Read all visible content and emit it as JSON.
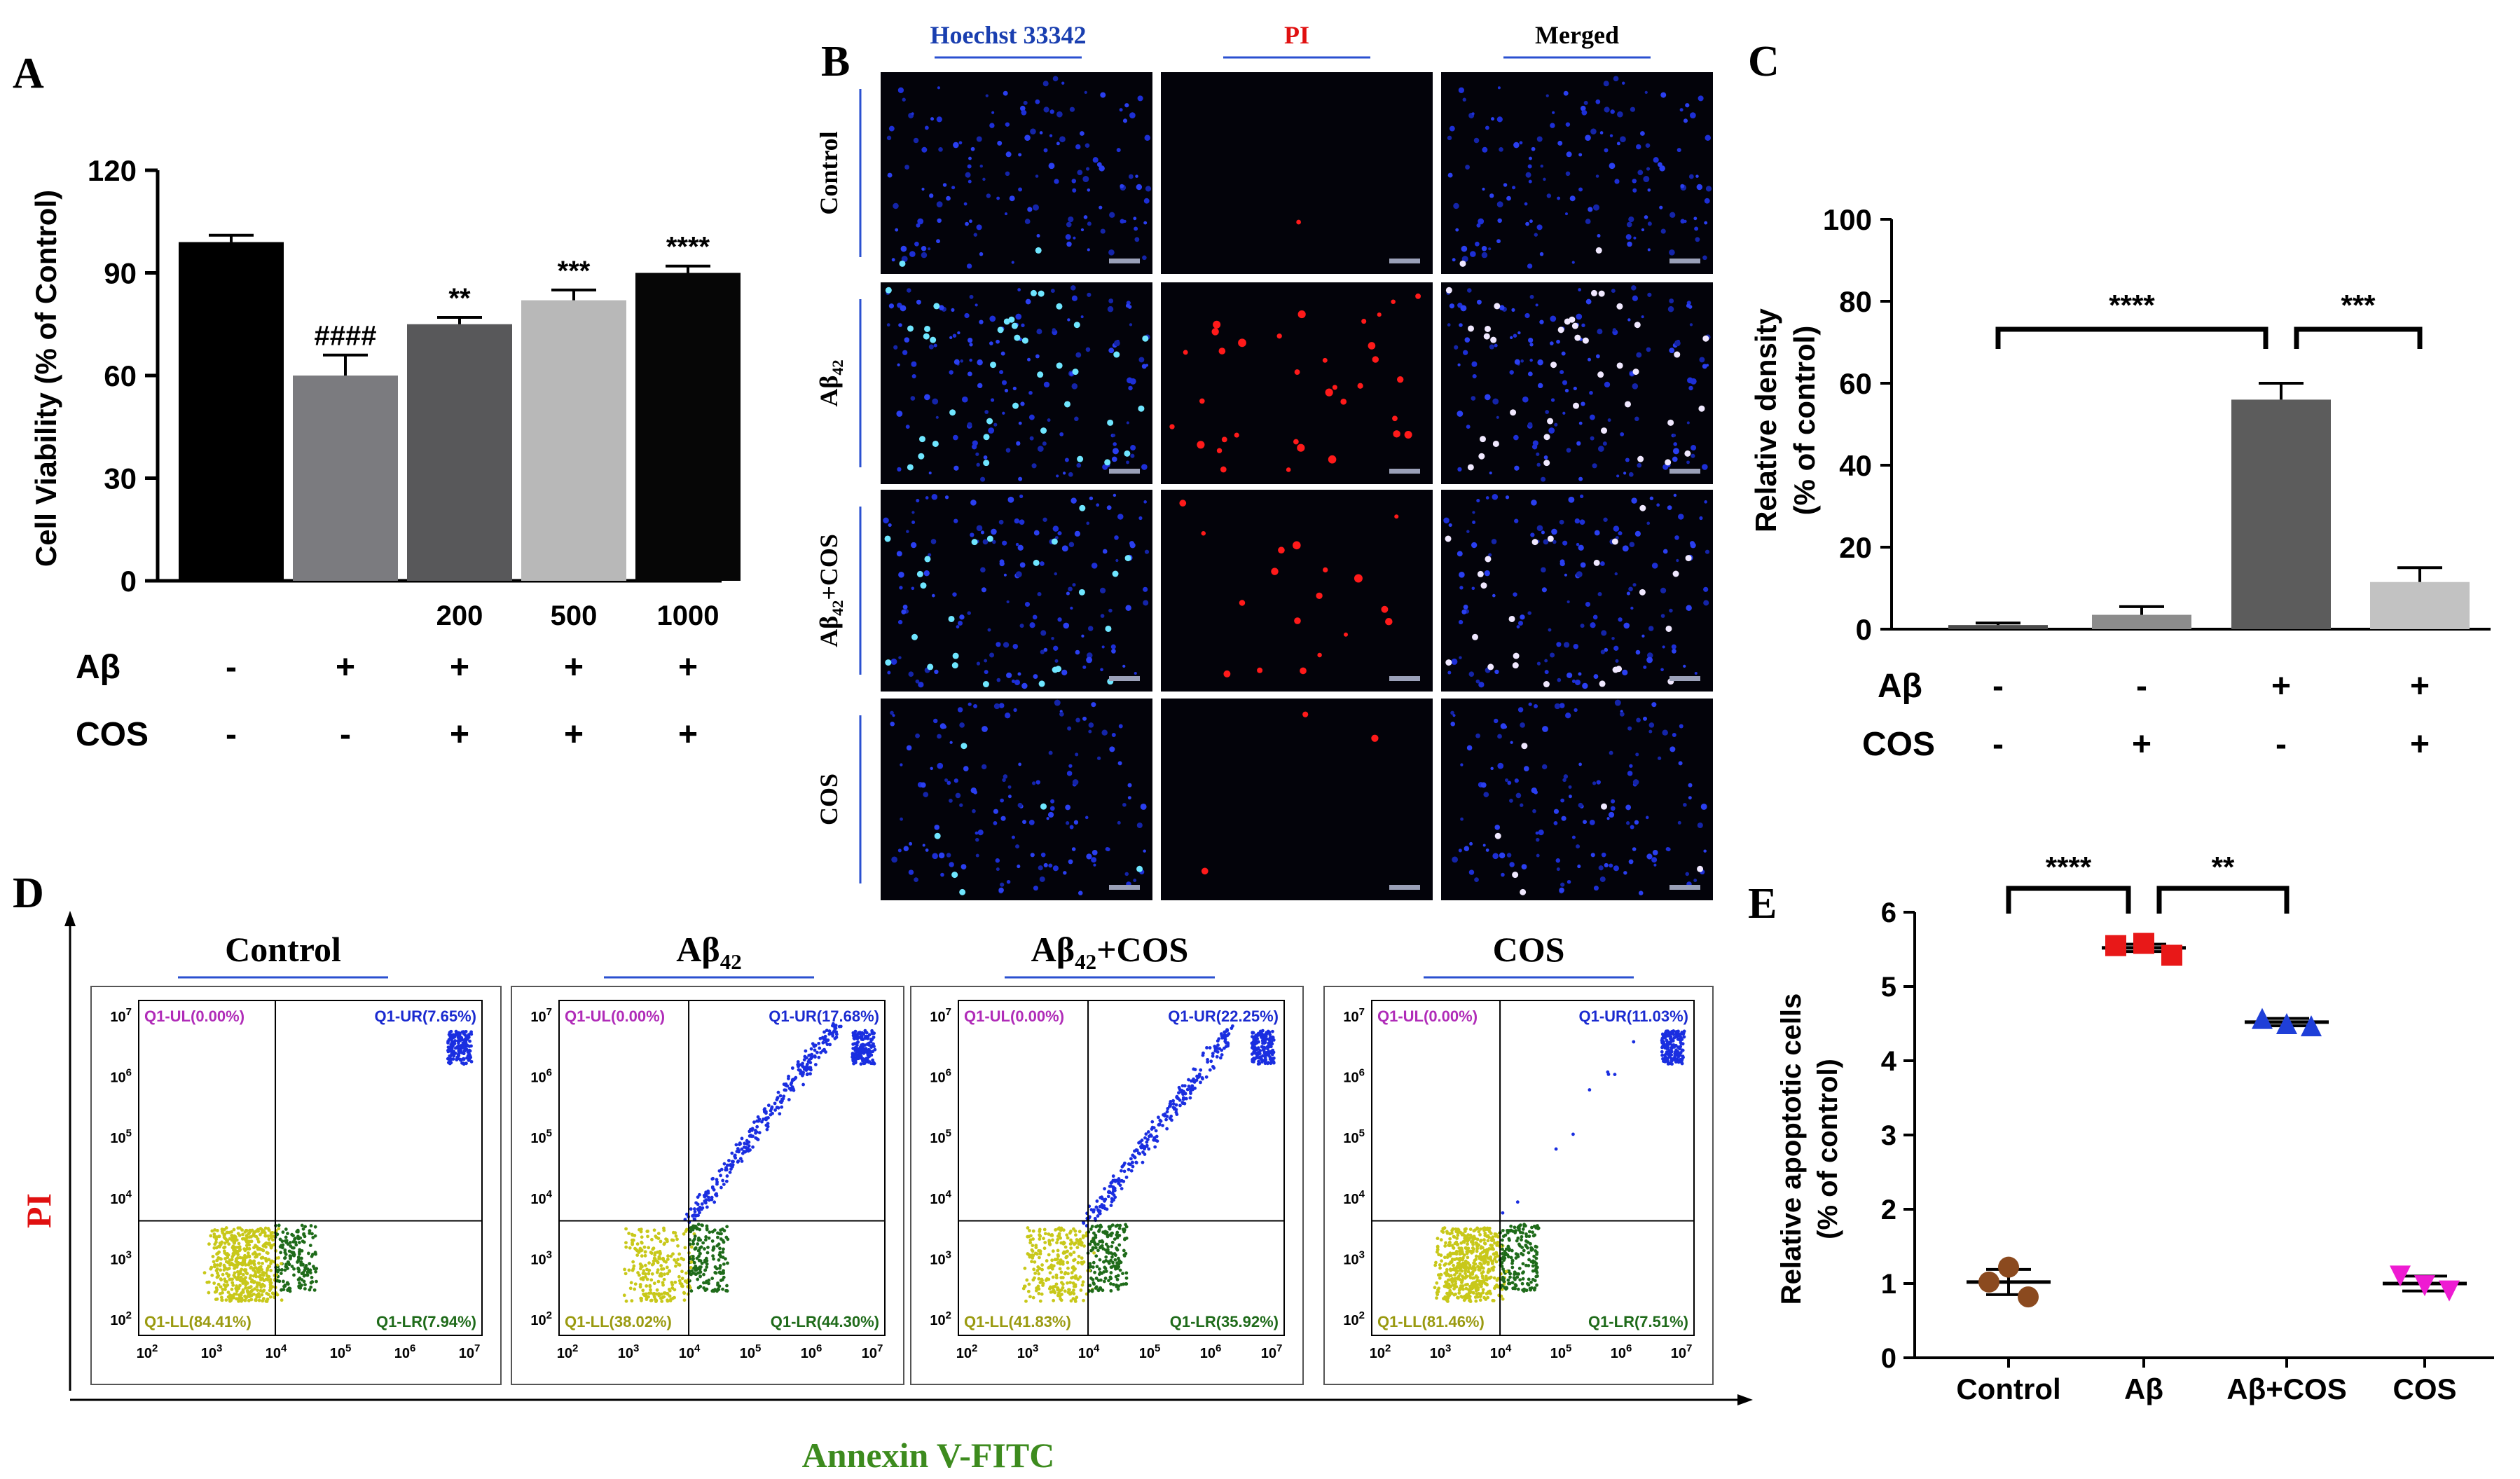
{
  "panel_letters": {
    "a": "A",
    "b": "B",
    "c": "C",
    "d": "D",
    "e": "E"
  },
  "colors": {
    "hoechst": "#1a3fb0",
    "pi": "#e01010",
    "fitc": "#3d8b1e",
    "divider": "#2a50d0"
  },
  "chart_data": [
    {
      "id": "A",
      "type": "bar",
      "ylabel": "Cell Viability (% of Control)",
      "ylim": [
        0,
        120
      ],
      "yticks": [
        "0",
        "30",
        "60",
        "90",
        "120"
      ],
      "categories": [
        "",
        "",
        "200",
        "500",
        "1000"
      ],
      "values": [
        99,
        60,
        75,
        82,
        90
      ],
      "errors": [
        2,
        6,
        2,
        3,
        2
      ],
      "colors": [
        "#000000",
        "#7b7b7f",
        "#58585a",
        "#b8b8b8",
        "#060606"
      ],
      "significance": [
        "",
        "####",
        "**",
        "***",
        "****"
      ],
      "rows": [
        {
          "label": "Aβ",
          "values": [
            "-",
            "+",
            "+",
            "+",
            "+"
          ]
        },
        {
          "label": "COS",
          "values": [
            "-",
            "-",
            "+",
            "+",
            "+"
          ]
        }
      ]
    },
    {
      "id": "C",
      "type": "bar",
      "ylabel": [
        "Relative density",
        "(% of control)"
      ],
      "ylim": [
        0,
        100
      ],
      "yticks": [
        "0",
        "20",
        "40",
        "60",
        "80",
        "100"
      ],
      "values": [
        1,
        3.5,
        56,
        11.5
      ],
      "errors": [
        0.5,
        2,
        4,
        3.5
      ],
      "colors": [
        "#4a4a4a",
        "#8c8c8c",
        "#5c5c5c",
        "#c2c2c2"
      ],
      "brackets": [
        {
          "from": 0,
          "to": 2,
          "label": "****"
        },
        {
          "from": 2,
          "to": 3,
          "label": "***"
        }
      ],
      "rows": [
        {
          "label": "Aβ",
          "values": [
            "-",
            "-",
            "+",
            "+"
          ]
        },
        {
          "label": "COS",
          "values": [
            "-",
            "+",
            "-",
            "+"
          ]
        }
      ]
    },
    {
      "id": "E",
      "type": "scatter",
      "ylabel": [
        "Relative  apoptotic cells",
        "(% of control)"
      ],
      "ylim": [
        0,
        6
      ],
      "yticks": [
        "0",
        "1",
        "2",
        "3",
        "4",
        "5",
        "6"
      ],
      "categories": [
        "Control",
        "Aβ",
        "Aβ+COS",
        "COS"
      ],
      "groups": [
        {
          "name": "Control",
          "color": "#8b4a1f",
          "marker": "circle",
          "points": [
            1.02,
            1.22,
            0.82
          ],
          "mean": 1.02,
          "sem": 0.17
        },
        {
          "name": "Aβ",
          "color": "#e81818",
          "marker": "square",
          "points": [
            5.55,
            5.58,
            5.42
          ],
          "mean": 5.52,
          "sem": 0.05
        },
        {
          "name": "Aβ+COS",
          "color": "#1f3fd8",
          "marker": "triangle",
          "points": [
            4.57,
            4.5,
            4.47
          ],
          "mean": 4.52,
          "sem": 0.05
        },
        {
          "name": "COS",
          "color": "#ee1bd2",
          "marker": "triangle-down",
          "points": [
            1.1,
            0.97,
            0.9
          ],
          "mean": 1.0,
          "sem": 0.1
        }
      ],
      "brackets": [
        {
          "from": 0,
          "to": 1,
          "label": "****"
        },
        {
          "from": 1,
          "to": 2,
          "label": "**"
        }
      ]
    }
  ],
  "panel_b": {
    "columns": [
      "Hoechst 33342",
      "PI",
      "Merged"
    ],
    "rows": [
      "Control",
      "Aβ42",
      "Aβ42+COS",
      "COS"
    ],
    "rows_base": [
      "Control",
      "Aβ",
      "Aβ",
      "COS"
    ],
    "rows_sub": [
      "",
      "42",
      "42",
      ""
    ],
    "rows_suffix": [
      "",
      "",
      "+COS",
      ""
    ]
  },
  "panel_d": {
    "y_axis": "PI",
    "x_axis": "Annexin V-FITC",
    "plots": [
      {
        "title": "Control",
        "title_base": "Control",
        "title_sub": "",
        "title_suffix": "",
        "UL": "Q1-UL(0.00%)",
        "UR": "Q1-UR(7.65%)",
        "LL": "Q1-LL(84.41%)",
        "LR": "Q1-LR(7.94%)"
      },
      {
        "title": "Aβ42",
        "title_base": "Aβ",
        "title_sub": "42",
        "title_suffix": "",
        "UL": "Q1-UL(0.00%)",
        "UR": "Q1-UR(17.68%)",
        "LL": "Q1-LL(38.02%)",
        "LR": "Q1-LR(44.30%)"
      },
      {
        "title": "Aβ42+COS",
        "title_base": "Aβ",
        "title_sub": "42",
        "title_suffix": "+COS",
        "UL": "Q1-UL(0.00%)",
        "UR": "Q1-UR(22.25%)",
        "LL": "Q1-LL(41.83%)",
        "LR": "Q1-LR(35.92%)"
      },
      {
        "title": "COS",
        "title_base": "COS",
        "title_sub": "",
        "title_suffix": "",
        "UL": "Q1-UL(0.00%)",
        "UR": "Q1-UR(11.03%)",
        "LL": "Q1-LL(81.46%)",
        "LR": "Q1-LR(7.51%)"
      }
    ],
    "y_exp": [
      "7",
      "6",
      "5",
      "4",
      "3",
      "2"
    ],
    "x_exp": [
      "2",
      "3",
      "4",
      "5",
      "6",
      "7"
    ]
  }
}
